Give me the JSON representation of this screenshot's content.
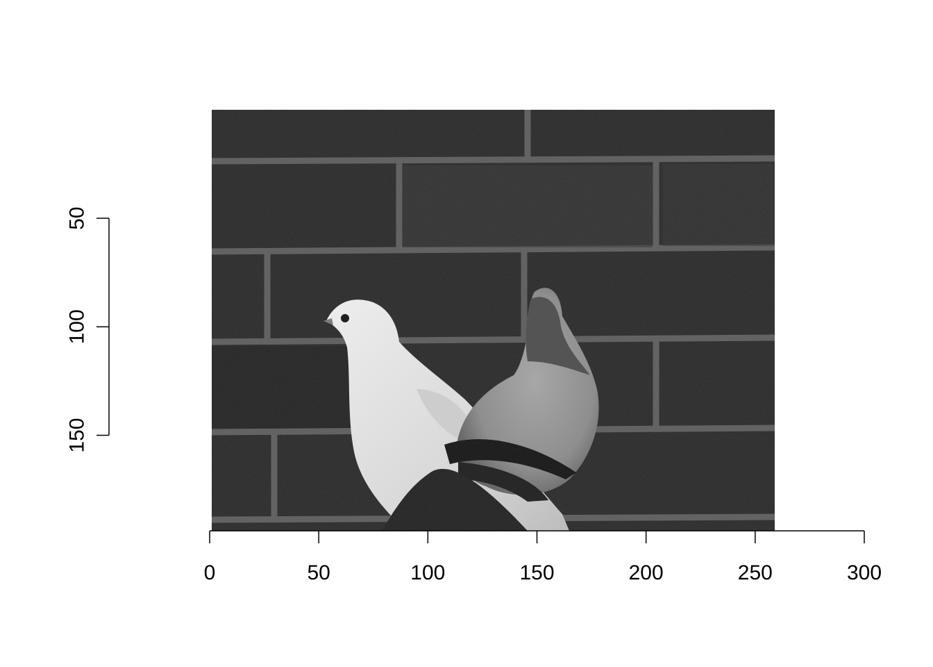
{
  "chart_data": {
    "type": "image",
    "title": "",
    "xlabel": "",
    "ylabel": "",
    "image_content": "grayscale photo of two pigeons (white and grey) in front of a brick wall",
    "image_extent": {
      "x": [
        1,
        259
      ],
      "y": [
        1,
        194
      ]
    },
    "xlim": [
      0,
      300
    ],
    "ylim_reversed": [
      0,
      194
    ],
    "x_ticks": [
      0,
      50,
      100,
      150,
      200,
      250,
      300
    ],
    "x_tick_labels": [
      "0",
      "50",
      "100",
      "150",
      "200",
      "250",
      "300"
    ],
    "y_ticks": [
      50,
      100,
      150
    ],
    "y_tick_labels": [
      "50",
      "100",
      "150"
    ],
    "grid": false,
    "colors": {
      "axis": "#000000",
      "background": "#ffffff"
    }
  }
}
